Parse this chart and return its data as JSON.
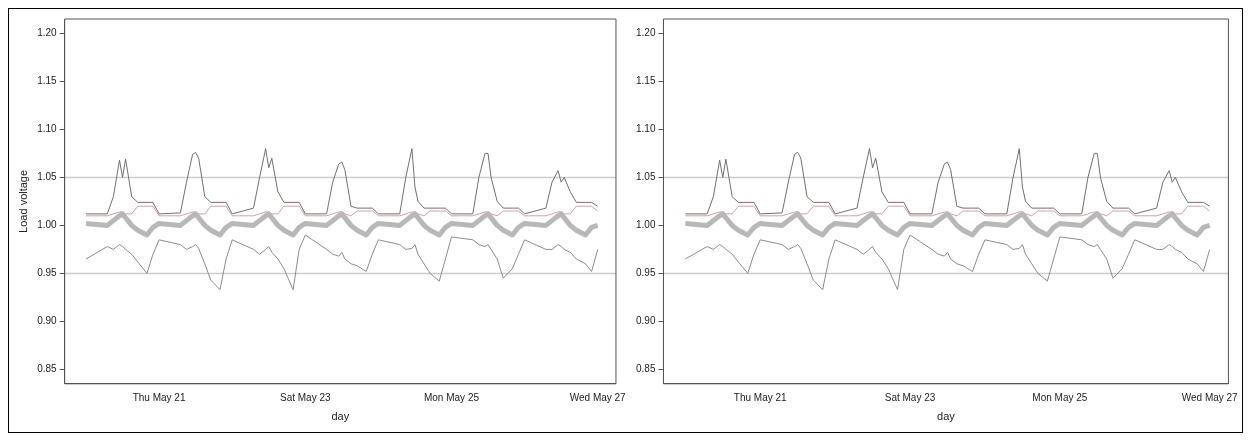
{
  "chart_data": [
    {
      "type": "line",
      "xlabel": "day",
      "ylabel": "Load voltage",
      "xlim": [
        "--05-19T17:00",
        "--05-27T06:00"
      ],
      "xticks": [
        {
          "value": "--05-21",
          "label": "Thu May 21"
        },
        {
          "value": "--05-23",
          "label": "Sat May 23"
        },
        {
          "value": "--05-25",
          "label": "Mon May 25"
        },
        {
          "value": "--05-27",
          "label": "Wed May 27"
        }
      ],
      "ylim": [
        0.835,
        1.215
      ],
      "yticks": [
        {
          "value": 0.85,
          "label": "0.85"
        },
        {
          "value": 0.9,
          "label": "0.90"
        },
        {
          "value": 0.95,
          "label": "0.95"
        },
        {
          "value": 1.0,
          "label": "1.00"
        },
        {
          "value": 1.05,
          "label": "1.05"
        },
        {
          "value": 1.1,
          "label": "1.10"
        },
        {
          "value": 1.15,
          "label": "1.15"
        },
        {
          "value": 1.2,
          "label": "1.20"
        }
      ],
      "grid": false,
      "legend": false,
      "marker": "none",
      "line_style": "solid",
      "ref_lines": [
        {
          "axis": "y",
          "value": 1.05,
          "color": "#cccccc"
        },
        {
          "axis": "y",
          "value": 0.95,
          "color": "#cccccc"
        }
      ],
      "x": [
        "--05-20T00:00",
        "--05-20T07:00",
        "--05-20T09:00",
        "--05-20T11:00",
        "--05-20T12:00",
        "--05-20T13:00",
        "--05-20T15:00",
        "--05-20T17:00",
        "--05-20T20:00",
        "--05-20T22:00",
        "--05-21T00:00",
        "--05-21T07:00",
        "--05-21T09:00",
        "--05-21T11:00",
        "--05-21T12:00",
        "--05-21T13:00",
        "--05-21T15:00",
        "--05-21T17:00",
        "--05-21T20:00",
        "--05-21T22:00",
        "--05-22T00:00",
        "--05-22T07:00",
        "--05-22T09:00",
        "--05-22T11:00",
        "--05-22T12:00",
        "--05-22T13:00",
        "--05-22T15:00",
        "--05-22T17:00",
        "--05-22T20:00",
        "--05-22T22:00",
        "--05-23T00:00",
        "--05-23T07:00",
        "--05-23T09:00",
        "--05-23T11:00",
        "--05-23T12:00",
        "--05-23T13:00",
        "--05-23T15:00",
        "--05-23T17:00",
        "--05-23T20:00",
        "--05-23T22:00",
        "--05-24T00:00",
        "--05-24T07:00",
        "--05-24T09:00",
        "--05-24T11:00",
        "--05-24T12:00",
        "--05-24T13:00",
        "--05-24T15:00",
        "--05-24T17:00",
        "--05-24T20:00",
        "--05-24T22:00",
        "--05-25T00:00",
        "--05-25T07:00",
        "--05-25T09:00",
        "--05-25T11:00",
        "--05-25T12:00",
        "--05-25T13:00",
        "--05-25T15:00",
        "--05-25T17:00",
        "--05-25T20:00",
        "--05-25T22:00",
        "--05-26T00:00",
        "--05-26T07:00",
        "--05-26T09:00",
        "--05-26T11:00",
        "--05-26T12:00",
        "--05-26T13:00",
        "--05-26T15:00",
        "--05-26T17:00",
        "--05-26T20:00",
        "--05-26T22:00",
        "--05-27T00:00"
      ],
      "series": [
        {
          "color": "#b8b8b8",
          "values": [
            1.002,
            1.0,
            1.005,
            1.01,
            1.012,
            1.008,
            1.0,
            0.995,
            0.99,
            0.998,
            1.002,
            1.0,
            1.005,
            1.01,
            1.012,
            1.008,
            1.0,
            0.995,
            0.99,
            0.998,
            1.002,
            1.0,
            1.005,
            1.01,
            1.012,
            1.008,
            1.0,
            0.995,
            0.99,
            0.998,
            1.002,
            1.0,
            1.005,
            1.01,
            1.012,
            1.008,
            1.0,
            0.995,
            0.99,
            0.998,
            1.002,
            1.0,
            1.005,
            1.01,
            1.012,
            1.008,
            1.0,
            0.995,
            0.99,
            0.998,
            1.002,
            1.0,
            1.005,
            1.01,
            1.012,
            1.008,
            1.0,
            0.995,
            0.99,
            0.998,
            1.002,
            1.0,
            1.005,
            1.01,
            1.012,
            1.008,
            1.0,
            0.995,
            0.99,
            0.998,
            1.0
          ]
        },
        {
          "color": "#8c8c8c",
          "values": [
            0.965,
            0.978,
            0.975,
            0.98,
            0.978,
            0.975,
            0.97,
            0.962,
            0.95,
            0.97,
            0.985,
            0.98,
            0.975,
            0.978,
            0.98,
            0.976,
            0.96,
            0.943,
            0.933,
            0.965,
            0.985,
            0.975,
            0.97,
            0.975,
            0.978,
            0.972,
            0.965,
            0.955,
            0.933,
            0.975,
            0.99,
            0.975,
            0.97,
            0.968,
            0.972,
            0.965,
            0.96,
            0.958,
            0.952,
            0.97,
            0.985,
            0.98,
            0.975,
            0.976,
            0.98,
            0.97,
            0.96,
            0.95,
            0.942,
            0.965,
            0.988,
            0.985,
            0.98,
            0.978,
            0.98,
            0.975,
            0.965,
            0.945,
            0.955,
            0.97,
            0.985,
            0.975,
            0.975,
            0.98,
            0.978,
            0.975,
            0.972,
            0.965,
            0.96,
            0.952,
            0.975
          ]
        },
        {
          "color": "#707070",
          "values": [
            1.012,
            1.012,
            1.03,
            1.068,
            1.05,
            1.069,
            1.03,
            1.024,
            1.024,
            1.024,
            1.012,
            1.013,
            1.045,
            1.074,
            1.076,
            1.07,
            1.03,
            1.024,
            1.024,
            1.024,
            1.012,
            1.018,
            1.05,
            1.08,
            1.06,
            1.07,
            1.035,
            1.024,
            1.024,
            1.024,
            1.012,
            1.012,
            1.045,
            1.064,
            1.066,
            1.058,
            1.02,
            1.018,
            1.018,
            1.018,
            1.012,
            1.012,
            1.05,
            1.08,
            1.04,
            1.025,
            1.018,
            1.018,
            1.018,
            1.018,
            1.012,
            1.012,
            1.05,
            1.075,
            1.075,
            1.05,
            1.025,
            1.018,
            1.018,
            1.018,
            1.012,
            1.018,
            1.045,
            1.057,
            1.045,
            1.05,
            1.035,
            1.024,
            1.024,
            1.024,
            1.02
          ]
        },
        {
          "color": "#d4a0a0",
          "values": [
            1.01,
            1.01,
            1.012,
            1.014,
            1.014,
            1.012,
            1.012,
            1.02,
            1.02,
            1.02,
            1.01,
            1.01,
            1.012,
            1.014,
            1.014,
            1.012,
            1.012,
            1.02,
            1.02,
            1.02,
            1.01,
            1.01,
            1.012,
            1.014,
            1.014,
            1.012,
            1.012,
            1.02,
            1.02,
            1.02,
            1.01,
            1.01,
            1.012,
            1.014,
            1.014,
            1.012,
            1.01,
            1.015,
            1.015,
            1.015,
            1.01,
            1.01,
            1.012,
            1.014,
            1.014,
            1.012,
            1.01,
            1.015,
            1.015,
            1.015,
            1.01,
            1.01,
            1.012,
            1.014,
            1.014,
            1.012,
            1.01,
            1.015,
            1.015,
            1.015,
            1.01,
            1.01,
            1.012,
            1.014,
            1.014,
            1.012,
            1.012,
            1.02,
            1.02,
            1.02,
            1.015
          ]
        }
      ]
    },
    {
      "type": "line",
      "xlabel": "day",
      "xlim": [
        "--05-19T17:00",
        "--05-27T06:00"
      ],
      "xticks": [
        {
          "value": "--05-21",
          "label": "Thu May 21"
        },
        {
          "value": "--05-23",
          "label": "Sat May 23"
        },
        {
          "value": "--05-25",
          "label": "Mon May 25"
        },
        {
          "value": "--05-27",
          "label": "Wed May 27"
        }
      ],
      "ylim": [
        0.835,
        1.215
      ],
      "yticks": [
        {
          "value": 0.85,
          "label": "0.85"
        },
        {
          "value": 0.9,
          "label": "0.90"
        },
        {
          "value": 0.95,
          "label": "0.95"
        },
        {
          "value": 1.0,
          "label": "1.00"
        },
        {
          "value": 1.05,
          "label": "1.05"
        },
        {
          "value": 1.1,
          "label": "1.10"
        },
        {
          "value": 1.15,
          "label": "1.15"
        },
        {
          "value": 1.2,
          "label": "1.20"
        }
      ],
      "grid": false,
      "legend": false,
      "marker": "none",
      "line_style": "solid",
      "ref_lines": [
        {
          "axis": "y",
          "value": 1.05,
          "color": "#cccccc"
        },
        {
          "axis": "y",
          "value": 0.95,
          "color": "#cccccc"
        }
      ],
      "x": [
        "--05-20T00:00",
        "--05-20T07:00",
        "--05-20T09:00",
        "--05-20T11:00",
        "--05-20T12:00",
        "--05-20T13:00",
        "--05-20T15:00",
        "--05-20T17:00",
        "--05-20T20:00",
        "--05-20T22:00",
        "--05-21T00:00",
        "--05-21T07:00",
        "--05-21T09:00",
        "--05-21T11:00",
        "--05-21T12:00",
        "--05-21T13:00",
        "--05-21T15:00",
        "--05-21T17:00",
        "--05-21T20:00",
        "--05-21T22:00",
        "--05-22T00:00",
        "--05-22T07:00",
        "--05-22T09:00",
        "--05-22T11:00",
        "--05-22T12:00",
        "--05-22T13:00",
        "--05-22T15:00",
        "--05-22T17:00",
        "--05-22T20:00",
        "--05-22T22:00",
        "--05-23T00:00",
        "--05-23T07:00",
        "--05-23T09:00",
        "--05-23T11:00",
        "--05-23T12:00",
        "--05-23T13:00",
        "--05-23T15:00",
        "--05-23T17:00",
        "--05-23T20:00",
        "--05-23T22:00",
        "--05-24T00:00",
        "--05-24T07:00",
        "--05-24T09:00",
        "--05-24T11:00",
        "--05-24T12:00",
        "--05-24T13:00",
        "--05-24T15:00",
        "--05-24T17:00",
        "--05-24T20:00",
        "--05-24T22:00",
        "--05-25T00:00",
        "--05-25T07:00",
        "--05-25T09:00",
        "--05-25T11:00",
        "--05-25T12:00",
        "--05-25T13:00",
        "--05-25T15:00",
        "--05-25T17:00",
        "--05-25T20:00",
        "--05-25T22:00",
        "--05-26T00:00",
        "--05-26T07:00",
        "--05-26T09:00",
        "--05-26T11:00",
        "--05-26T12:00",
        "--05-26T13:00",
        "--05-26T15:00",
        "--05-26T17:00",
        "--05-26T20:00",
        "--05-26T22:00",
        "--05-27T00:00"
      ],
      "series": [
        {
          "color": "#b8b8b8",
          "values": [
            1.002,
            1.0,
            1.005,
            1.01,
            1.012,
            1.008,
            1.0,
            0.995,
            0.99,
            0.998,
            1.002,
            1.0,
            1.005,
            1.01,
            1.012,
            1.008,
            1.0,
            0.995,
            0.99,
            0.998,
            1.002,
            1.0,
            1.005,
            1.01,
            1.012,
            1.008,
            1.0,
            0.995,
            0.99,
            0.998,
            1.002,
            1.0,
            1.005,
            1.01,
            1.012,
            1.008,
            1.0,
            0.995,
            0.99,
            0.998,
            1.002,
            1.0,
            1.005,
            1.01,
            1.012,
            1.008,
            1.0,
            0.995,
            0.99,
            0.998,
            1.002,
            1.0,
            1.005,
            1.01,
            1.012,
            1.008,
            1.0,
            0.995,
            0.99,
            0.998,
            1.002,
            1.0,
            1.005,
            1.01,
            1.012,
            1.008,
            1.0,
            0.995,
            0.99,
            0.998,
            1.0
          ]
        },
        {
          "color": "#8c8c8c",
          "values": [
            0.965,
            0.978,
            0.975,
            0.98,
            0.978,
            0.975,
            0.97,
            0.962,
            0.95,
            0.97,
            0.985,
            0.98,
            0.975,
            0.978,
            0.98,
            0.976,
            0.96,
            0.943,
            0.933,
            0.965,
            0.985,
            0.975,
            0.97,
            0.975,
            0.978,
            0.972,
            0.965,
            0.955,
            0.933,
            0.975,
            0.99,
            0.975,
            0.97,
            0.968,
            0.972,
            0.965,
            0.96,
            0.958,
            0.952,
            0.97,
            0.985,
            0.98,
            0.975,
            0.976,
            0.98,
            0.97,
            0.96,
            0.95,
            0.942,
            0.965,
            0.988,
            0.985,
            0.98,
            0.978,
            0.98,
            0.975,
            0.965,
            0.945,
            0.955,
            0.97,
            0.985,
            0.975,
            0.975,
            0.98,
            0.978,
            0.975,
            0.972,
            0.965,
            0.96,
            0.952,
            0.975
          ]
        },
        {
          "color": "#707070",
          "values": [
            1.012,
            1.012,
            1.03,
            1.068,
            1.05,
            1.069,
            1.03,
            1.024,
            1.024,
            1.024,
            1.012,
            1.013,
            1.045,
            1.074,
            1.076,
            1.07,
            1.03,
            1.024,
            1.024,
            1.024,
            1.012,
            1.018,
            1.05,
            1.08,
            1.06,
            1.07,
            1.035,
            1.024,
            1.024,
            1.024,
            1.012,
            1.012,
            1.045,
            1.064,
            1.066,
            1.058,
            1.02,
            1.018,
            1.018,
            1.018,
            1.012,
            1.012,
            1.05,
            1.08,
            1.04,
            1.025,
            1.018,
            1.018,
            1.018,
            1.018,
            1.012,
            1.012,
            1.05,
            1.075,
            1.075,
            1.05,
            1.025,
            1.018,
            1.018,
            1.018,
            1.012,
            1.018,
            1.045,
            1.057,
            1.045,
            1.05,
            1.035,
            1.024,
            1.024,
            1.024,
            1.02
          ]
        },
        {
          "color": "#d4a0a0",
          "values": [
            1.01,
            1.01,
            1.012,
            1.014,
            1.014,
            1.012,
            1.012,
            1.02,
            1.02,
            1.02,
            1.01,
            1.01,
            1.012,
            1.014,
            1.014,
            1.012,
            1.012,
            1.02,
            1.02,
            1.02,
            1.01,
            1.01,
            1.012,
            1.014,
            1.014,
            1.012,
            1.012,
            1.02,
            1.02,
            1.02,
            1.01,
            1.01,
            1.012,
            1.014,
            1.014,
            1.012,
            1.01,
            1.015,
            1.015,
            1.015,
            1.01,
            1.01,
            1.012,
            1.014,
            1.014,
            1.012,
            1.01,
            1.015,
            1.015,
            1.015,
            1.01,
            1.01,
            1.012,
            1.014,
            1.014,
            1.012,
            1.01,
            1.015,
            1.015,
            1.015,
            1.01,
            1.01,
            1.012,
            1.014,
            1.014,
            1.012,
            1.012,
            1.02,
            1.02,
            1.02,
            1.015
          ]
        }
      ]
    }
  ]
}
